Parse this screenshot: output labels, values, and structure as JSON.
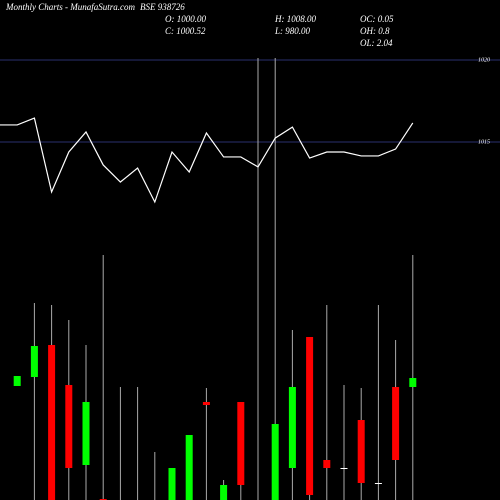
{
  "header": {
    "site_label": "Monthly Charts",
    "site_name": "- MunafaSutra.com",
    "symbol": "BSE 938726",
    "open": "O: 1000.00",
    "high": "H: 1008.00",
    "oc": "OC: 0.05",
    "close": "C: 1000.52",
    "low": "L: 980.00",
    "oh": "OH: 0.8",
    "ol": "OL: 2.04"
  },
  "chart_data": {
    "type": "candlestick",
    "categories": [
      null,
      null,
      null,
      null,
      null,
      null,
      null,
      null,
      null,
      null,
      null,
      null,
      null,
      null,
      null,
      null,
      null,
      null,
      null,
      null,
      null,
      null,
      null,
      null,
      null
    ],
    "candles": {
      "open": [
        null,
        45.6,
        49.2,
        62,
        46,
        14,
        0.4,
        0,
        0,
        0,
        0,
        0,
        39.2,
        0,
        39.2,
        0,
        0,
        12.8,
        65.2,
        16,
        12.8,
        32,
        6.8,
        45.2,
        45.2
      ],
      "high": [
        null,
        49.6,
        78.8,
        78,
        72,
        62,
        98,
        45.2,
        45.2,
        19.2,
        12.8,
        26,
        44.8,
        8,
        39.2,
        176.8,
        176.8,
        68,
        65.2,
        78,
        46,
        44.8,
        78,
        64,
        98
      ],
      "low": [
        null,
        45.6,
        0,
        0,
        0,
        0,
        0,
        0,
        0,
        0,
        0,
        0,
        0,
        0,
        0,
        0,
        0,
        0,
        0,
        0,
        0,
        0,
        0,
        0,
        0
      ],
      "close": [
        null,
        49.6,
        61.6,
        0,
        12.8,
        39.2,
        0,
        0,
        0,
        0,
        12.8,
        26,
        38,
        6,
        6,
        0,
        30.4,
        45.2,
        2,
        12.8,
        12.8,
        6.8,
        6.8,
        16,
        48.8
      ],
      "ylim": [
        0,
        100
      ],
      "up_color": "#00ff00",
      "down_color": "#ff0000",
      "flat_color": "#ffffff",
      "wick_color": "#aaaaaa"
    },
    "line": {
      "color": "#ffffff",
      "values": [
        1016.04,
        1016.04,
        1016.46,
        1011.95,
        1014.39,
        1015.61,
        1013.6,
        1012.56,
        1013.41,
        1011.34,
        1014.39,
        1013.17,
        1015.55,
        1014.09,
        1014.09,
        1013.48,
        1015.24,
        1015.91,
        1014.02,
        1014.39,
        1014.39,
        1014.15,
        1014.15,
        1014.57,
        1016.16
      ],
      "ylim": [
        1009,
        1020
      ],
      "yticks": [
        1015,
        1020
      ],
      "grid": true,
      "grid_color": "#2a2f6e"
    }
  }
}
